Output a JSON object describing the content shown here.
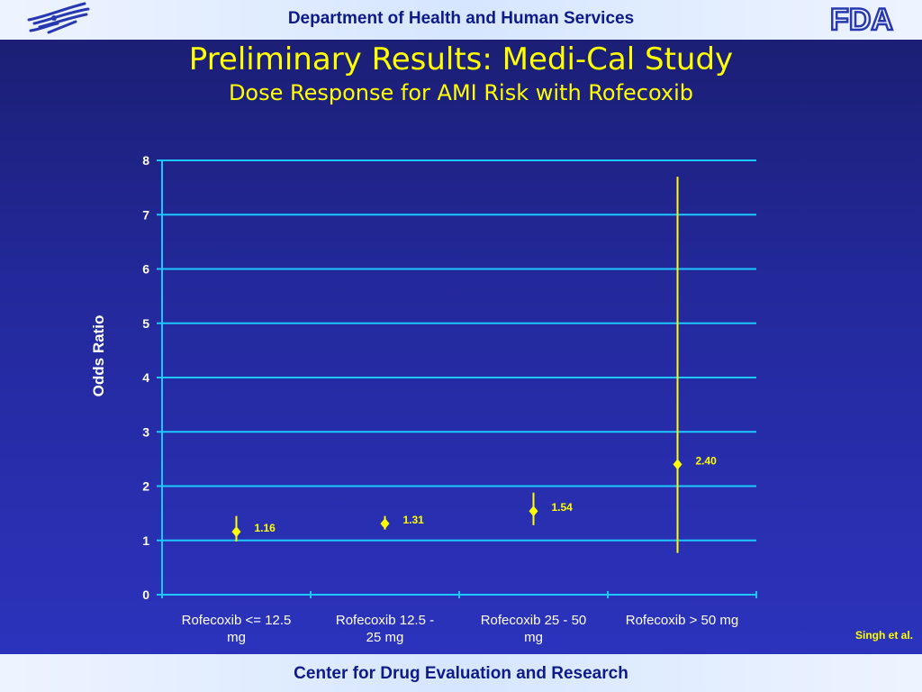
{
  "header": {
    "agency": "Department of Health and Human Services",
    "fda_logo_text": "FDA"
  },
  "slide": {
    "title": "Preliminary Results: Medi-Cal Study",
    "subtitle": "Dose Response for AMI Risk with Rofecoxib"
  },
  "citation": "Singh et al.",
  "footer": {
    "center": "Center for Drug Evaluation and Research"
  },
  "colors": {
    "accent": "#ffff00",
    "grid": "#1ec8ff",
    "background": "#23289a",
    "bar": "#d6e6ff"
  },
  "chart_data": {
    "type": "scatter",
    "title": "",
    "xlabel": "",
    "ylabel": "Odds Ratio",
    "ylim": [
      0,
      8
    ],
    "yticks": [
      0,
      1,
      2,
      3,
      4,
      5,
      6,
      7,
      8
    ],
    "grid": true,
    "categories": [
      [
        "Rofecoxib <= 12.5",
        "mg"
      ],
      [
        "Rofecoxib 12.5 -",
        "25 mg"
      ],
      [
        "Rofecoxib 25 - 50",
        "mg"
      ],
      [
        "Rofecoxib > 50 mg"
      ]
    ],
    "points": [
      {
        "value": 1.16,
        "label": "1.16",
        "ci_low": 0.98,
        "ci_high": 1.45
      },
      {
        "value": 1.31,
        "label": "1.31",
        "ci_low": 1.2,
        "ci_high": 1.45
      },
      {
        "value": 1.54,
        "label": "1.54",
        "ci_low": 1.28,
        "ci_high": 1.88
      },
      {
        "value": 2.4,
        "label": "2.40",
        "ci_low": 0.77,
        "ci_high": 7.7
      }
    ]
  }
}
